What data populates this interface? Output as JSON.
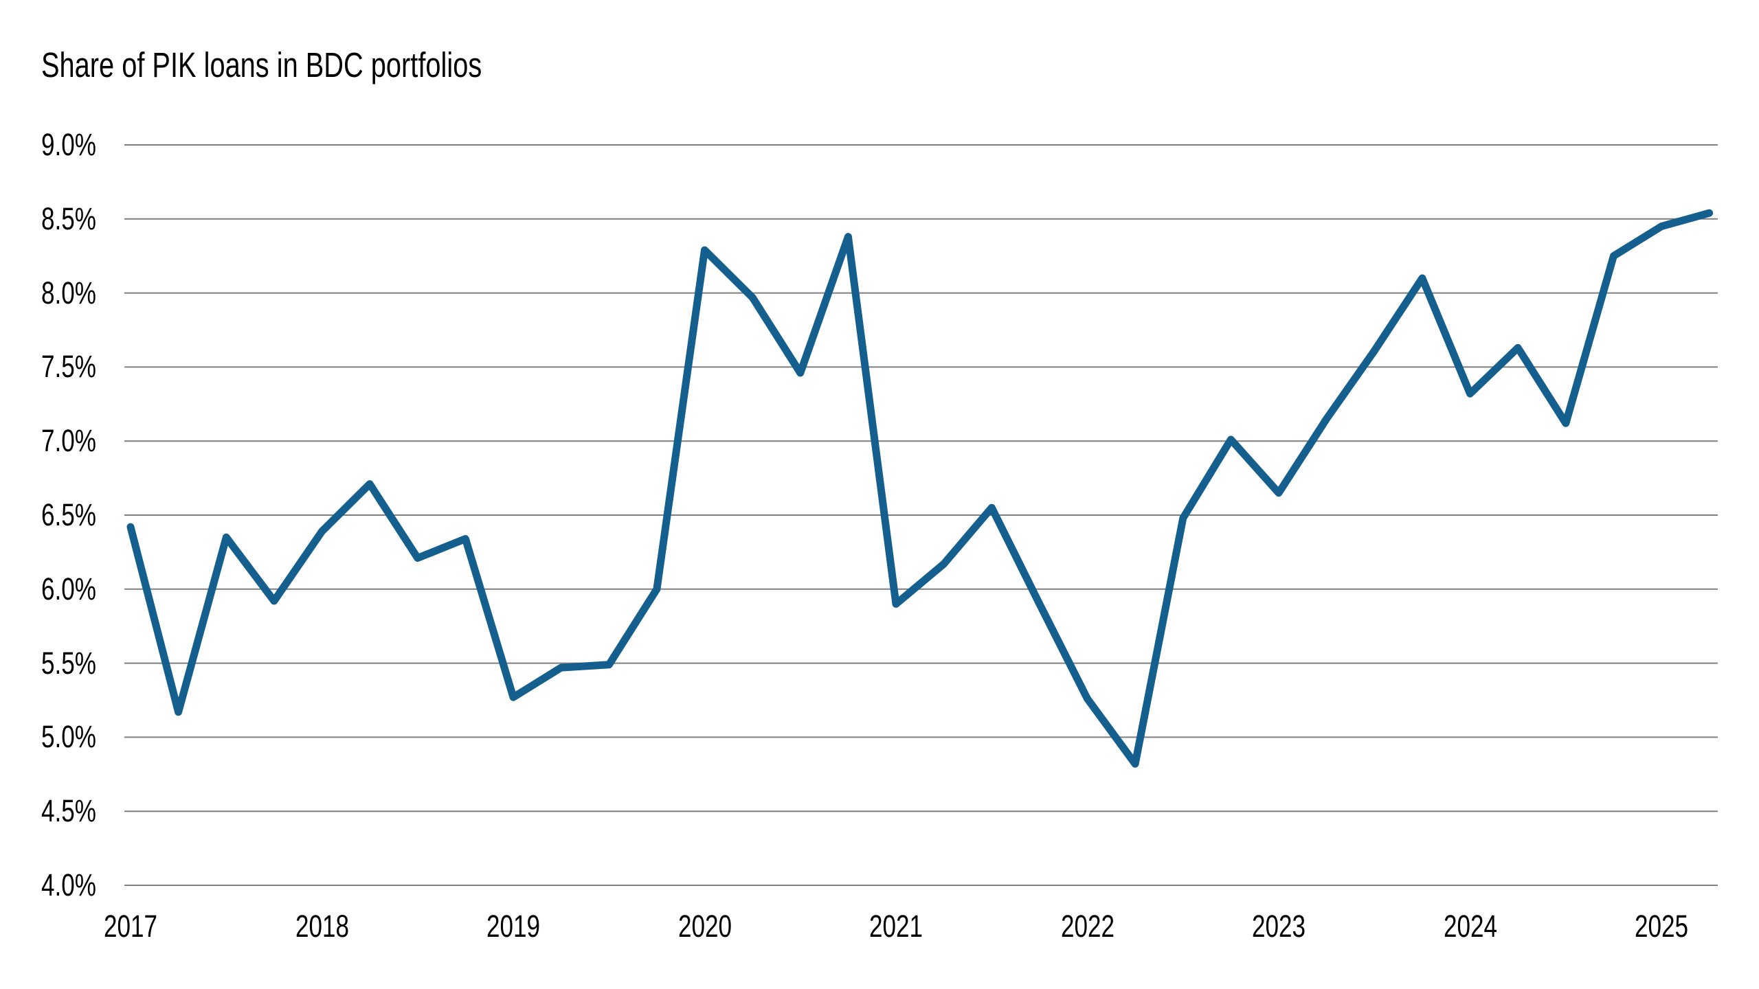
{
  "title": "Share of PIK loans in BDC portfolios",
  "colors": {
    "line": "#145F8D",
    "gridline": "#7F7F7F",
    "text": "#000000",
    "background": "#FFFFFF"
  },
  "chart_data": {
    "type": "line",
    "title": "Share of PIK loans in BDC portfolios",
    "xlabel": "",
    "ylabel": "",
    "ylim": [
      4.0,
      9.0
    ],
    "y_tick_step": 0.5,
    "y_tick_labels": [
      "9.0%",
      "8.5%",
      "8.0%",
      "7.5%",
      "7.0%",
      "6.5%",
      "6.0%",
      "5.5%",
      "5.0%",
      "4.5%",
      "4.0%"
    ],
    "x_tick_labels": [
      "2017",
      "2018",
      "2019",
      "2020",
      "2021",
      "2022",
      "2023",
      "2024",
      "2025"
    ],
    "x_range": [
      2017.0,
      2025.25
    ],
    "x_step_years": 0.25,
    "grid": "horizontal",
    "legend_position": "none",
    "series": [
      {
        "name": "Share of PIK loans in BDC portfolios",
        "color": "#145F8D",
        "frequency": "quarterly",
        "values": [
          6.42,
          5.17,
          6.35,
          5.92,
          6.39,
          6.71,
          6.21,
          6.34,
          5.27,
          5.47,
          5.49,
          6.0,
          8.29,
          7.97,
          7.46,
          8.38,
          5.9,
          6.17,
          6.55,
          5.9,
          5.26,
          4.82,
          6.48,
          7.01,
          6.65,
          7.15,
          7.61,
          8.1,
          7.32,
          7.63,
          7.12,
          8.25,
          8.45,
          8.54
        ]
      }
    ]
  }
}
